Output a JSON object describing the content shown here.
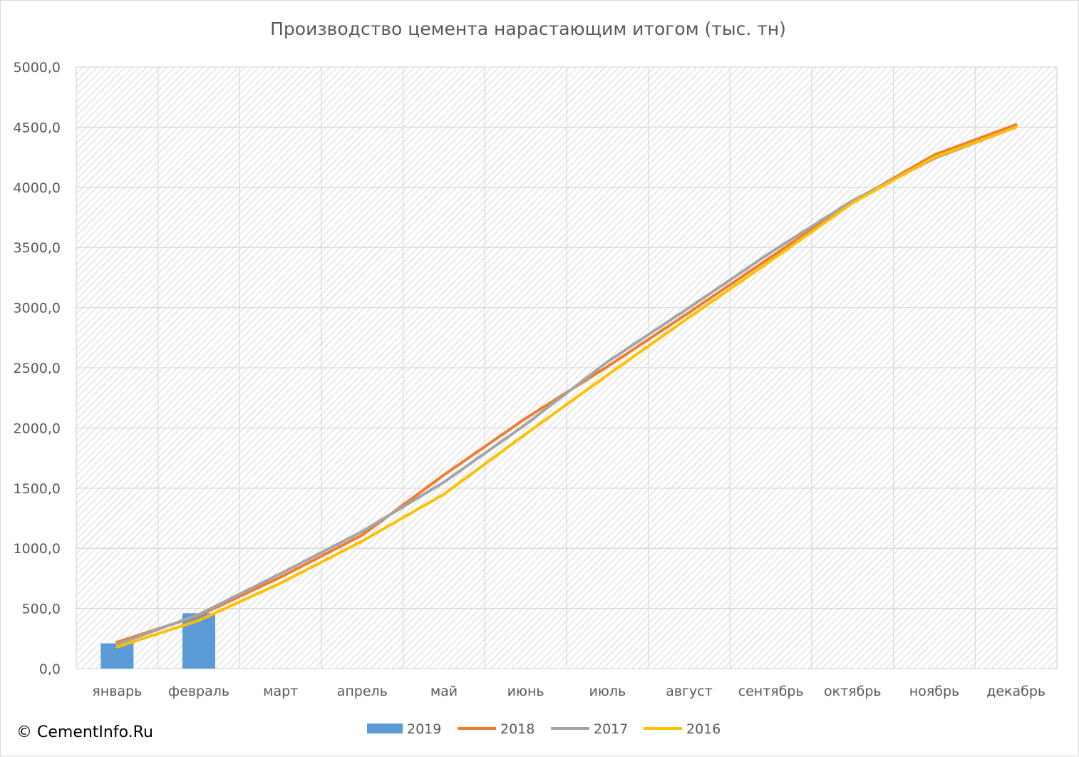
{
  "colors": {
    "2019": "#5b9bd5",
    "2018": "#ed7d31",
    "2017": "#a5a5a5",
    "2016": "#ffc000",
    "grid": "#d9d9d9",
    "text": "#595959"
  },
  "chart_data": {
    "type": "bar+line",
    "title": "Производство цемента нарастающим итогом (тыс. тн)",
    "xlabel": "",
    "ylabel": "",
    "ylim": [
      0,
      5000
    ],
    "yticks": [
      "0,0",
      "500,0",
      "1000,0",
      "1500,0",
      "2000,0",
      "2500,0",
      "3000,0",
      "3500,0",
      "4000,0",
      "4500,0",
      "5000,0"
    ],
    "ytick_values": [
      0,
      500,
      1000,
      1500,
      2000,
      2500,
      3000,
      3500,
      4000,
      4500,
      5000
    ],
    "categories": [
      "январь",
      "февраль",
      "март",
      "апрель",
      "май",
      "июнь",
      "июль",
      "август",
      "сентябрь",
      "октябрь",
      "ноябрь",
      "декабрь"
    ],
    "grid": true,
    "legend_position": "bottom",
    "series": [
      {
        "name": "2019",
        "kind": "bar",
        "values": [
          210,
          460,
          null,
          null,
          null,
          null,
          null,
          null,
          null,
          null,
          null,
          null
        ]
      },
      {
        "name": "2018",
        "kind": "line",
        "values": [
          220,
          440,
          760,
          1110,
          1610,
          2080,
          2510,
          2960,
          3420,
          3880,
          4270,
          4520
        ]
      },
      {
        "name": "2017",
        "kind": "line",
        "values": [
          200,
          450,
          790,
          1140,
          1550,
          2030,
          2550,
          3000,
          3460,
          3890,
          4240,
          4500
        ]
      },
      {
        "name": "2016",
        "kind": "line",
        "values": [
          180,
          400,
          710,
          1060,
          1450,
          1950,
          2440,
          2920,
          3390,
          3870,
          4250,
          4500
        ]
      }
    ]
  },
  "copyright": "© CementInfo.Ru"
}
